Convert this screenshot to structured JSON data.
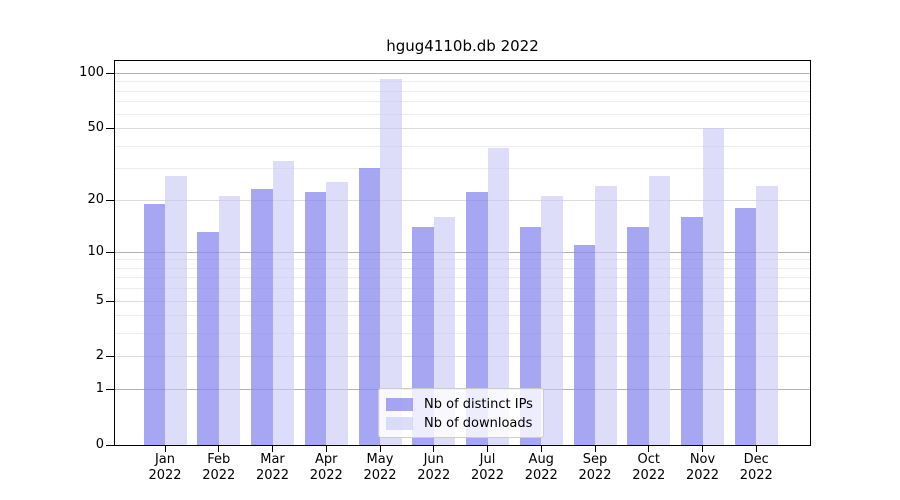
{
  "title": "hgug4110b.db 2022",
  "chart_data": {
    "type": "bar",
    "categories": [
      "Jan",
      "Feb",
      "Mar",
      "Apr",
      "May",
      "Jun",
      "Jul",
      "Aug",
      "Sep",
      "Oct",
      "Nov",
      "Dec"
    ],
    "year_label": "2022",
    "series": [
      {
        "name": "Nb of distinct IPs",
        "color": "#8888ee",
        "alpha": 0.75,
        "values": [
          19,
          13,
          23,
          22,
          30,
          14,
          22,
          14,
          11,
          14,
          16,
          18
        ]
      },
      {
        "name": "Nb of downloads",
        "color": "#c8c8f5",
        "alpha": 0.62,
        "values": [
          27,
          21,
          33,
          25,
          93,
          16,
          39,
          21,
          24,
          27,
          50,
          24
        ]
      }
    ],
    "yscale": "log1p",
    "ylim": [
      0,
      118
    ],
    "yticks": [
      0,
      1,
      2,
      5,
      10,
      20,
      50,
      100
    ],
    "ytick_labels": [
      "0",
      "1",
      "2",
      "5",
      "10",
      "20",
      "50",
      "100"
    ],
    "minor_yticks": [
      3,
      4,
      6,
      7,
      8,
      9,
      30,
      40,
      60,
      70,
      80,
      90
    ],
    "grid": true,
    "legend_position": "bottom-center",
    "grid_colors": {
      "decade": "#b2b2b2",
      "labeled": "#dcdcdc",
      "minor": "#ececec"
    }
  }
}
